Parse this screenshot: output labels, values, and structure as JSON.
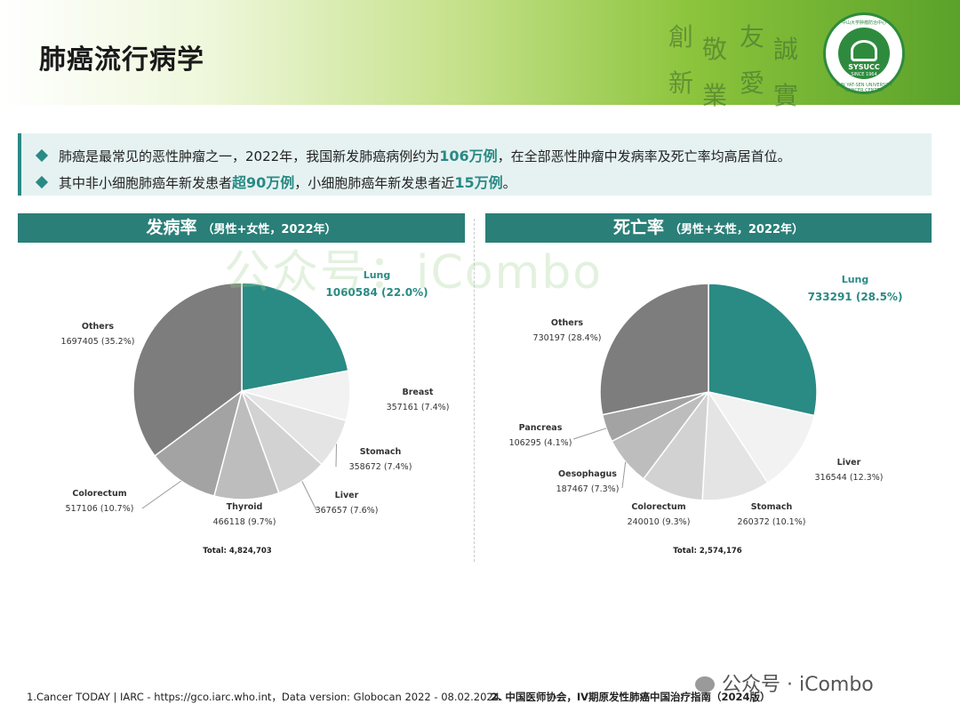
{
  "page_title": "肺癌流行病学",
  "calligraphy": {
    "col1": [
      "創",
      "新"
    ],
    "col2": [
      "敬",
      "業"
    ],
    "col3": [
      "友",
      "愛"
    ],
    "col4": [
      "誠",
      "實"
    ]
  },
  "logo": {
    "top_text": "中山大学肿瘤防治中心",
    "abbr": "SYSUCC",
    "since": "SINCE 1964",
    "ring_text": "SUN YAT-SEN UNIVERSITY CANCER CENTER"
  },
  "bullets": [
    {
      "pre": "肺癌是最常见的恶性肿瘤之一，2022年，我国新发肺癌病例约为",
      "hl": "106万例",
      "post": "，在全部恶性肿瘤中发病率及死亡率均高居首位。"
    },
    {
      "pre": "其中非小细胞肺癌年新发患者",
      "hl": "超90万例",
      "mid": "，小细胞肺癌年新发患者近",
      "hl2": "15万例",
      "post": "。"
    }
  ],
  "panels": {
    "left": {
      "title": "发病率",
      "subtitle": "（男性+女性，2022年）"
    },
    "right": {
      "title": "死亡率",
      "subtitle": "（男性+女性，2022年）"
    }
  },
  "watermark": "公众号：iCombo",
  "colors": {
    "teal": "#2a8a84",
    "banner": "#2a7f78"
  },
  "chart_data": [
    {
      "type": "pie",
      "title": "发病率（男性+女性，2022年）",
      "total_label": "Total: 4,824,703",
      "slices": [
        {
          "name": "Lung",
          "value": 1060584,
          "pct": "22.0%",
          "color": "#2a8a84",
          "highlight": true
        },
        {
          "name": "Breast",
          "value": 357161,
          "pct": "7.4%",
          "color": "#f2f2f2"
        },
        {
          "name": "Stomach",
          "value": 358672,
          "pct": "7.4%",
          "color": "#e4e4e4"
        },
        {
          "name": "Liver",
          "value": 367657,
          "pct": "7.6%",
          "color": "#d2d2d2"
        },
        {
          "name": "Thyroid",
          "value": 466118,
          "pct": "9.7%",
          "color": "#bdbdbd"
        },
        {
          "name": "Colorectum",
          "value": 517106,
          "pct": "10.7%",
          "color": "#a3a3a3"
        },
        {
          "name": "Others",
          "value": 1697405,
          "pct": "35.2%",
          "color": "#7d7d7d"
        }
      ]
    },
    {
      "type": "pie",
      "title": "死亡率（男性+女性，2022年）",
      "total_label": "Total: 2,574,176",
      "slices": [
        {
          "name": "Lung",
          "value": 733291,
          "pct": "28.5%",
          "color": "#2a8a84",
          "highlight": true
        },
        {
          "name": "Liver",
          "value": 316544,
          "pct": "12.3%",
          "color": "#f2f2f2"
        },
        {
          "name": "Stomach",
          "value": 260372,
          "pct": "10.1%",
          "color": "#e4e4e4"
        },
        {
          "name": "Colorectum",
          "value": 240010,
          "pct": "9.3%",
          "color": "#d2d2d2"
        },
        {
          "name": "Oesophagus",
          "value": 187467,
          "pct": "7.3%",
          "color": "#bdbdbd"
        },
        {
          "name": "Pancreas",
          "value": 106295,
          "pct": "4.1%",
          "color": "#a3a3a3"
        },
        {
          "name": "Others",
          "value": 730197,
          "pct": "28.4%",
          "color": "#7d7d7d"
        }
      ]
    }
  ],
  "footer": {
    "ref1": "1.Cancer TODAY | IARC - https://gco.iarc.who.int，Data version: Globocan 2022 - 08.02.2024.",
    "ref2": "2. 中国医师协会，IV期原发性肺癌中国治疗指南（2024版）",
    "wm": "公众号 · iCombo"
  }
}
